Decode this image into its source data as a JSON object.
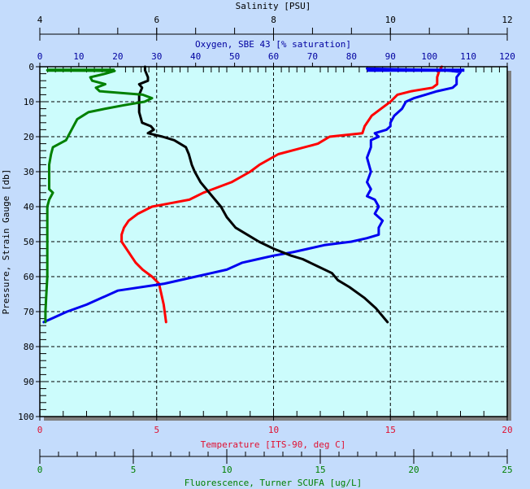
{
  "chart_data": {
    "type": "line",
    "title": "",
    "plot_background": "#ccfcfc",
    "page_background": "#c4dcfc",
    "grid": "dashed-major",
    "y_axis": {
      "label": "Pressure, Strain Gauge [db]",
      "range": [
        0,
        100
      ],
      "inverted": true,
      "ticks": [
        0,
        10,
        20,
        30,
        40,
        50,
        60,
        70,
        80,
        90,
        100
      ],
      "color": "#000000"
    },
    "x_axes": [
      {
        "id": "salinity",
        "label": "Salinity [PSU]",
        "position": "top-outer",
        "range": [
          4,
          12
        ],
        "ticks": [
          4,
          6,
          8,
          10,
          12
        ],
        "color": "#000000"
      },
      {
        "id": "oxygen",
        "label": "Oxygen, SBE 43 [% saturation]",
        "position": "top-inner",
        "range": [
          0,
          120
        ],
        "ticks": [
          0,
          10,
          20,
          30,
          40,
          50,
          60,
          70,
          80,
          90,
          100,
          110,
          120
        ],
        "color": "#0000a0"
      },
      {
        "id": "temperature",
        "label": "Temperature [ITS-90, deg C]",
        "position": "bottom-inner",
        "range": [
          0,
          20
        ],
        "ticks": [
          0,
          5,
          10,
          15,
          20
        ],
        "color": "#e01010"
      },
      {
        "id": "fluorescence",
        "label": "Fluorescence, Turner SCUFA [ug/L]",
        "position": "bottom-outer",
        "range": [
          0,
          25
        ],
        "ticks": [
          0,
          5,
          10,
          15,
          20,
          25
        ],
        "color": "#008000"
      }
    ],
    "series": [
      {
        "name": "Temperature",
        "axis": "temperature",
        "color": "#ff0000",
        "pressure": [
          0,
          1,
          3,
          5,
          6,
          7,
          8,
          10,
          12,
          14,
          17,
          19,
          20,
          22,
          25,
          28,
          30,
          33,
          36,
          38,
          39,
          40,
          42,
          44,
          46,
          48,
          50,
          52,
          54,
          56,
          58,
          60,
          62,
          65,
          68,
          73
        ],
        "values": [
          17.2,
          17.1,
          17.0,
          17.0,
          16.8,
          15.9,
          15.3,
          15.0,
          14.6,
          14.2,
          13.9,
          13.8,
          12.4,
          11.9,
          10.2,
          9.4,
          9.0,
          8.2,
          7.0,
          6.4,
          5.6,
          4.8,
          4.2,
          3.8,
          3.6,
          3.5,
          3.5,
          3.7,
          3.9,
          4.1,
          4.4,
          4.8,
          5.1,
          5.2,
          5.3,
          5.4
        ]
      },
      {
        "name": "Oxygen",
        "axis": "oxygen",
        "color": "#0000f0",
        "pressure": [
          0.5,
          1,
          1.5,
          3,
          5,
          6,
          7,
          8,
          9,
          10,
          12,
          14,
          16,
          17,
          18,
          19,
          20,
          21,
          23,
          26,
          30,
          33,
          35,
          37,
          38,
          40,
          42,
          44,
          46,
          48,
          49,
          50,
          51,
          52,
          53,
          54,
          55,
          56,
          58,
          60,
          62,
          64,
          66,
          68,
          70,
          72,
          73
        ],
        "values": [
          84,
          104,
          108,
          107,
          107,
          106,
          102,
          99,
          96,
          94,
          93,
          91,
          90,
          90,
          89,
          86,
          87,
          85,
          85,
          84,
          85,
          84,
          85,
          84,
          86,
          87,
          86,
          88,
          87,
          87,
          84,
          80,
          73,
          69,
          65,
          60,
          56,
          52,
          48,
          40,
          32,
          20,
          16,
          12,
          7,
          3,
          1
        ]
      },
      {
        "name": "Salinity",
        "axis": "salinity",
        "color": "#000000",
        "pressure": [
          0,
          1,
          3,
          4,
          5,
          6,
          8,
          10,
          13,
          16,
          17,
          18,
          19,
          20,
          21,
          23,
          25,
          28,
          30,
          33,
          35,
          37,
          40,
          43,
          46,
          48,
          50,
          52,
          54,
          55,
          57,
          59,
          61,
          63,
          66,
          69,
          73
        ],
        "values": [
          5.8,
          5.8,
          5.85,
          5.85,
          5.7,
          5.75,
          5.7,
          5.7,
          5.7,
          5.75,
          5.9,
          5.95,
          5.85,
          6.1,
          6.3,
          6.5,
          6.55,
          6.6,
          6.65,
          6.75,
          6.85,
          6.95,
          7.1,
          7.2,
          7.35,
          7.55,
          7.75,
          8.0,
          8.3,
          8.5,
          8.75,
          9.0,
          9.1,
          9.3,
          9.55,
          9.75,
          9.95
        ]
      },
      {
        "name": "Fluorescence",
        "axis": "fluorescence",
        "color": "#008000",
        "pressure": [
          1,
          1.2,
          2,
          3,
          4,
          5,
          6,
          7,
          8,
          9,
          10,
          11,
          12,
          13,
          14,
          15,
          17,
          19,
          21,
          23,
          25,
          28,
          30,
          33,
          35,
          36,
          38,
          40,
          45,
          50,
          55,
          60,
          65,
          70,
          73
        ],
        "values": [
          0.4,
          4.0,
          3.5,
          2.7,
          2.8,
          3.5,
          3.0,
          3.2,
          5.5,
          6.0,
          5.6,
          4.5,
          3.5,
          2.6,
          2.3,
          2.0,
          1.8,
          1.6,
          1.4,
          0.7,
          0.6,
          0.5,
          0.5,
          0.5,
          0.5,
          0.7,
          0.5,
          0.4,
          0.4,
          0.4,
          0.4,
          0.4,
          0.35,
          0.3,
          0.3
        ]
      }
    ]
  }
}
